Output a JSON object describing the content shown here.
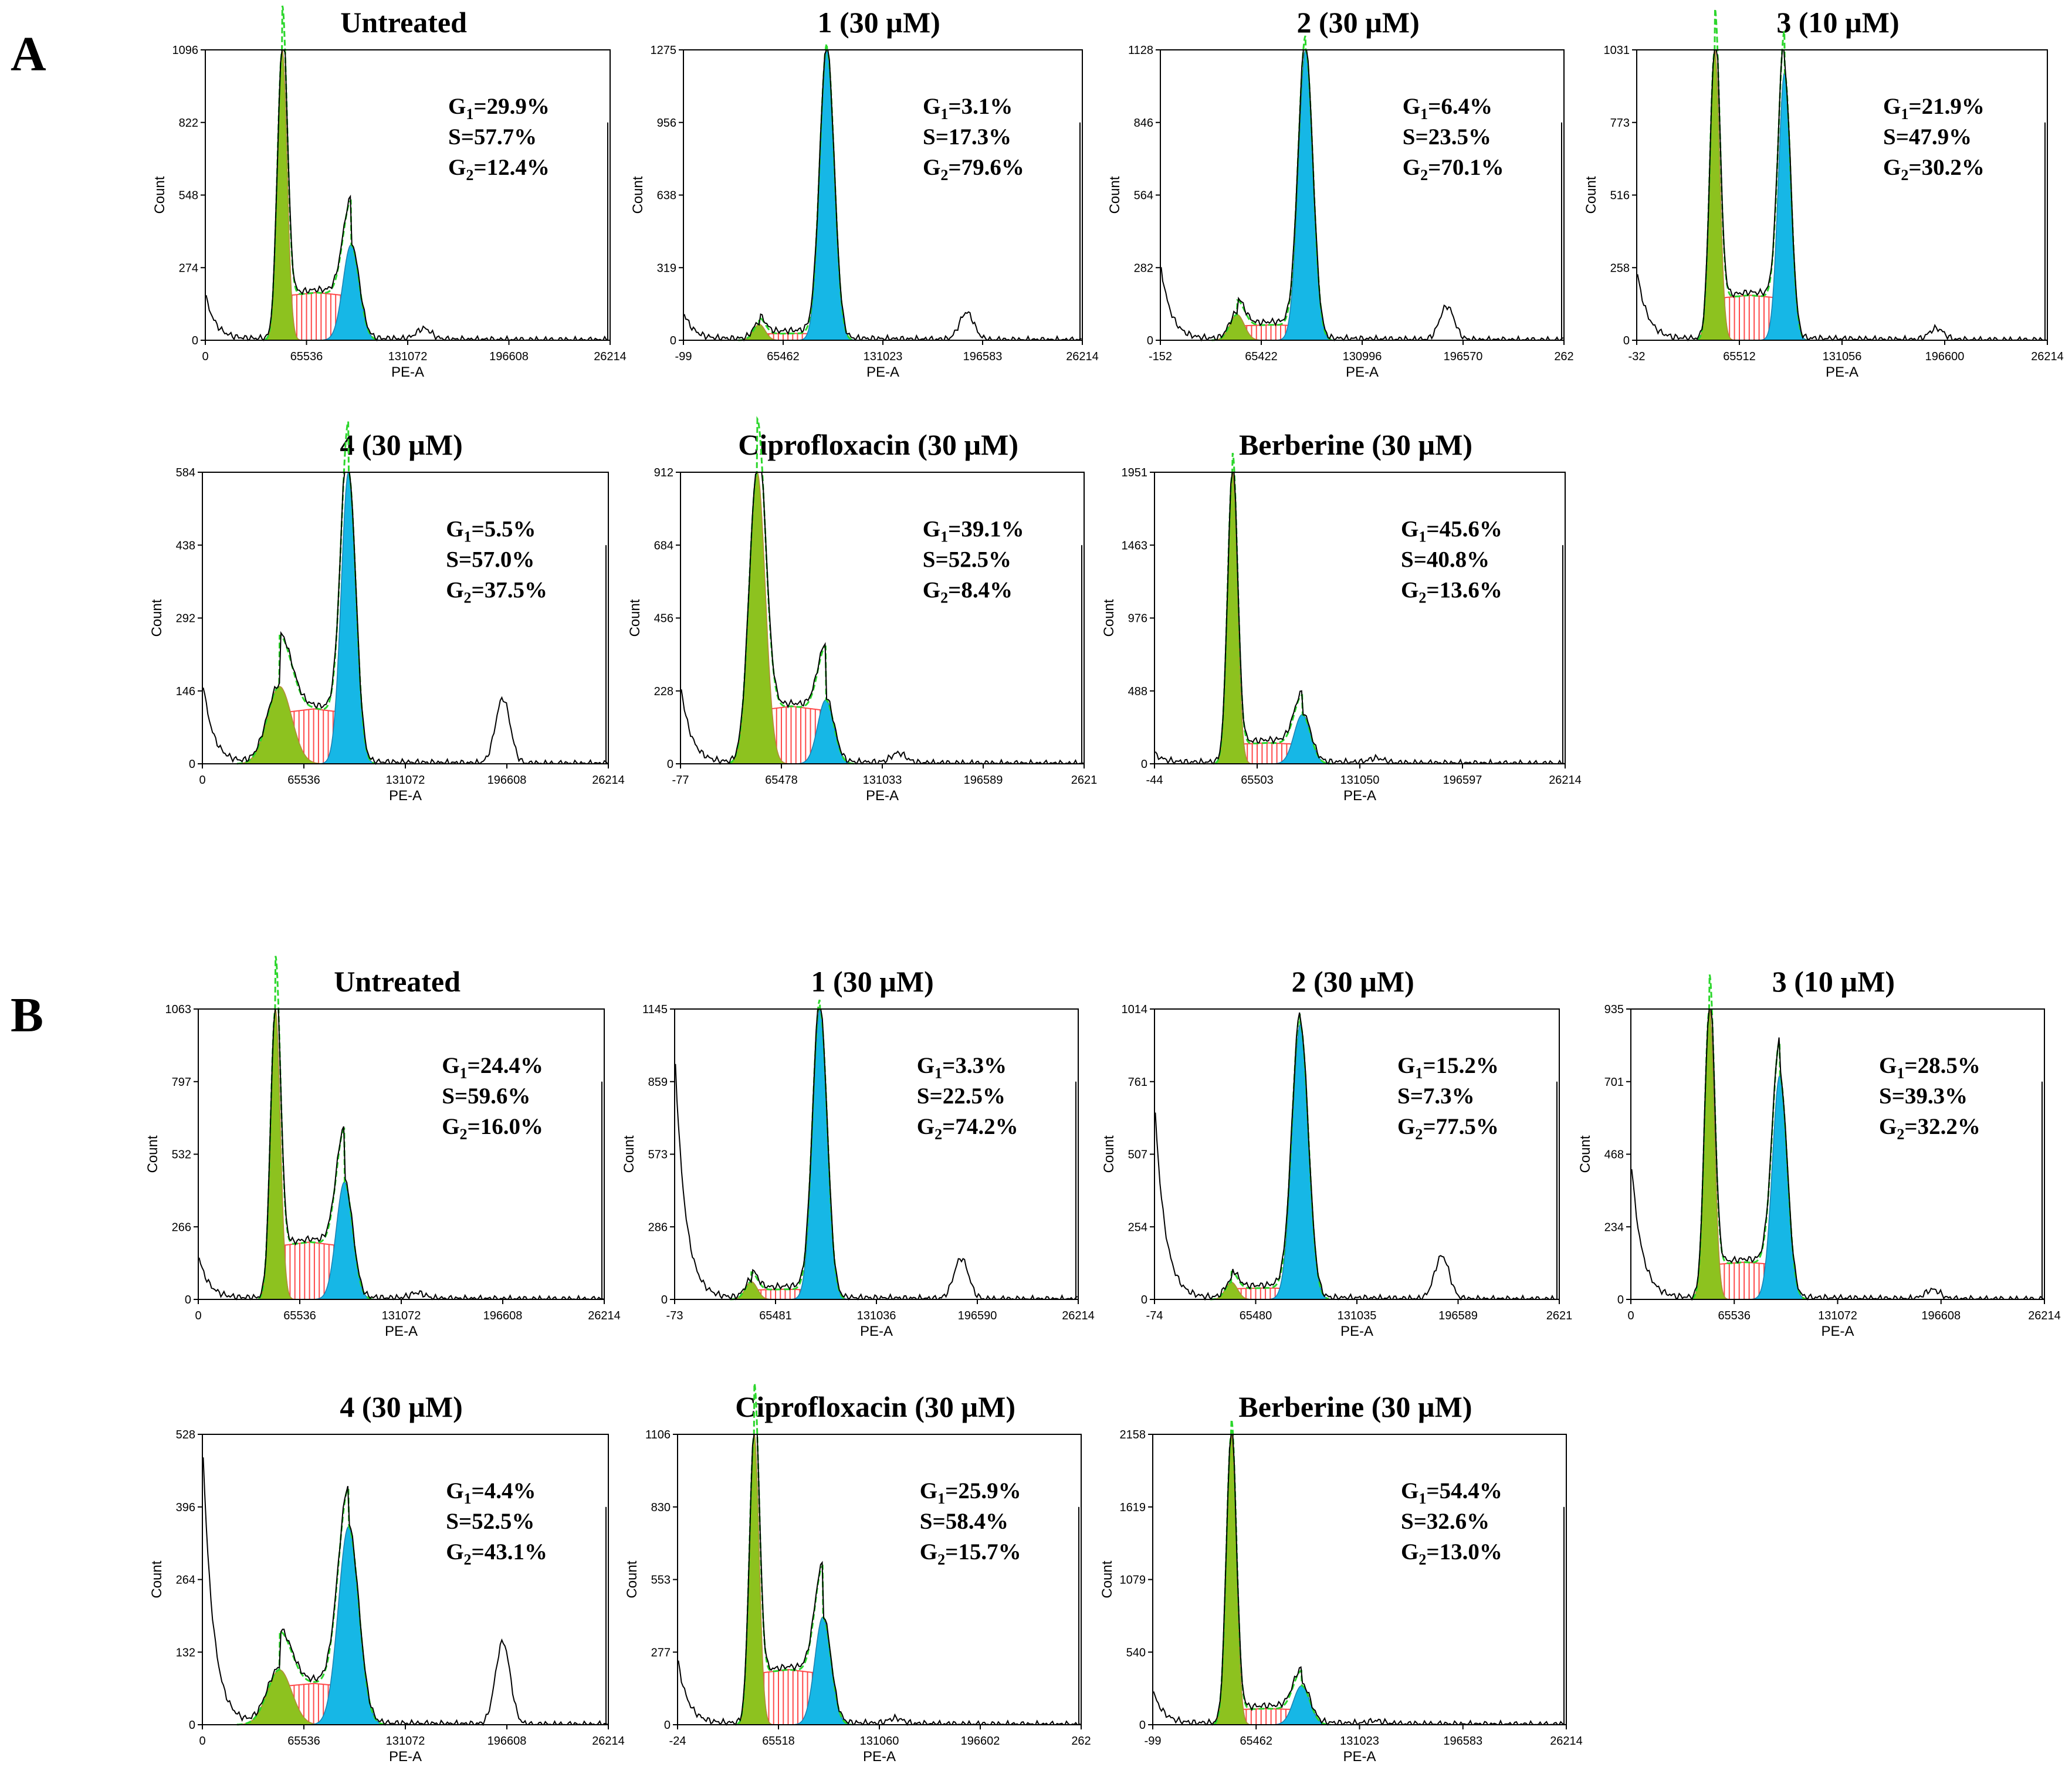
{
  "figure": {
    "panels": [
      "A",
      "B"
    ]
  },
  "colors": {
    "g1_fill": "#8DC21F",
    "g1_dark": "#B5873A",
    "s_fill": "#FF4A4A",
    "g2_fill": "#16B7E6",
    "fit_line": "#2BD62B",
    "trace": "#000000"
  },
  "chart_data": [
    {
      "panel": "A",
      "type": "area",
      "title": "Untreated",
      "xlabel": "PE-A",
      "ylabel": "Count",
      "yticks": [
        "0",
        "274",
        "548",
        "822",
        "1096"
      ],
      "ymax": 1096,
      "xticks": [
        "0",
        "65536",
        "131072",
        "196608",
        "26214"
      ],
      "stats": {
        "G1": "29.9%",
        "S": "57.7%",
        "G2": "12.4%"
      },
      "g1_peak": {
        "x": 0.19,
        "y": 1096,
        "w": 0.012
      },
      "g2_peak": {
        "x": 0.36,
        "y": 360,
        "w": 0.02
      },
      "s_level": 180,
      "debris": 170,
      "agg": {
        "x": 0.54,
        "y": 40
      }
    },
    {
      "panel": "A",
      "type": "area",
      "title": "1 (30 µM)",
      "xlabel": "PE-A",
      "ylabel": "Count",
      "yticks": [
        "0",
        "319",
        "638",
        "956",
        "1275"
      ],
      "ymax": 1275,
      "xticks": [
        "-99",
        "65462",
        "131023",
        "196583",
        "26214"
      ],
      "stats": {
        "G1": "3.1%",
        "S": "17.3%",
        "G2": "79.6%"
      },
      "g1_peak": {
        "x": 0.19,
        "y": 70,
        "w": 0.015
      },
      "g2_peak": {
        "x": 0.36,
        "y": 1275,
        "w": 0.018
      },
      "s_level": 30,
      "debris": 120,
      "agg": {
        "x": 0.71,
        "y": 120
      }
    },
    {
      "panel": "A",
      "type": "area",
      "title": "2 (30 µM)",
      "xlabel": "PE-A",
      "ylabel": "Count",
      "yticks": [
        "0",
        "282",
        "564",
        "846",
        "1128"
      ],
      "ymax": 1128,
      "xticks": [
        "-152",
        "65422",
        "130996",
        "196570",
        "262"
      ],
      "stats": {
        "G1": "6.4%",
        "S": "23.5%",
        "G2": "70.1%"
      },
      "g1_peak": {
        "x": 0.19,
        "y": 100,
        "w": 0.018
      },
      "g2_peak": {
        "x": 0.36,
        "y": 1128,
        "w": 0.018
      },
      "s_level": 60,
      "debris": 300,
      "agg": {
        "x": 0.71,
        "y": 130
      }
    },
    {
      "panel": "A",
      "type": "area",
      "title": "3 (10 µM)",
      "xlabel": "PE-A",
      "ylabel": "Count",
      "yticks": [
        "0",
        "258",
        "516",
        "773",
        "1031"
      ],
      "ymax": 1031,
      "xticks": [
        "-32",
        "65512",
        "131056",
        "196600",
        "26214"
      ],
      "stats": {
        "G1": "21.9%",
        "S": "47.9%",
        "G2": "30.2%"
      },
      "g1_peak": {
        "x": 0.19,
        "y": 1031,
        "w": 0.012
      },
      "g2_peak": {
        "x": 0.36,
        "y": 950,
        "w": 0.015
      },
      "s_level": 160,
      "debris": 250,
      "agg": {
        "x": 0.73,
        "y": 40
      }
    },
    {
      "panel": "A",
      "type": "area",
      "title": "4 (30 µM)",
      "xlabel": "PE-A",
      "ylabel": "Count",
      "yticks": [
        "0",
        "146",
        "292",
        "438",
        "584"
      ],
      "ymax": 584,
      "xticks": [
        "0",
        "65536",
        "131072",
        "196608",
        "26214"
      ],
      "stats": {
        "G1": "5.5%",
        "S": "57.0%",
        "G2": "37.5%"
      },
      "g1_peak": {
        "x": 0.19,
        "y": 155,
        "w": 0.03
      },
      "g2_peak": {
        "x": 0.36,
        "y": 584,
        "w": 0.018
      },
      "s_level": 110,
      "debris": 170,
      "agg": {
        "x": 0.74,
        "y": 130
      }
    },
    {
      "panel": "A",
      "type": "area",
      "title": "Ciprofloxacin (30 µM)",
      "xlabel": "PE-A",
      "ylabel": "Count",
      "yticks": [
        "0",
        "228",
        "456",
        "684",
        "912"
      ],
      "ymax": 912,
      "xticks": [
        "-77",
        "65478",
        "131033",
        "196589",
        "2621"
      ],
      "stats": {
        "G1": "39.1%",
        "S": "52.5%",
        "G2": "8.4%"
      },
      "g1_peak": {
        "x": 0.19,
        "y": 912,
        "w": 0.02
      },
      "g2_peak": {
        "x": 0.36,
        "y": 200,
        "w": 0.02
      },
      "s_level": 180,
      "debris": 250,
      "agg": {
        "x": 0.54,
        "y": 30
      }
    },
    {
      "panel": "A",
      "type": "area",
      "title": "Berberine (30 µM)",
      "xlabel": "PE-A",
      "ylabel": "Count",
      "yticks": [
        "0",
        "488",
        "976",
        "1463",
        "1951"
      ],
      "ymax": 1951,
      "xticks": [
        "-44",
        "65503",
        "131050",
        "196597",
        "26214"
      ],
      "stats": {
        "G1": "45.6%",
        "S": "40.8%",
        "G2": "13.6%"
      },
      "g1_peak": {
        "x": 0.19,
        "y": 1951,
        "w": 0.012
      },
      "g2_peak": {
        "x": 0.36,
        "y": 330,
        "w": 0.02
      },
      "s_level": 140,
      "debris": 60,
      "agg": {
        "x": 0.54,
        "y": 30
      }
    },
    {
      "panel": "B",
      "type": "area",
      "title": "Untreated",
      "xlabel": "PE-A",
      "ylabel": "Count",
      "yticks": [
        "0",
        "266",
        "532",
        "797",
        "1063"
      ],
      "ymax": 1063,
      "xticks": [
        "0",
        "65536",
        "131072",
        "196608",
        "26214"
      ],
      "stats": {
        "G1": "24.4%",
        "S": "59.6%",
        "G2": "16.0%"
      },
      "g1_peak": {
        "x": 0.19,
        "y": 1063,
        "w": 0.012
      },
      "g2_peak": {
        "x": 0.36,
        "y": 430,
        "w": 0.02
      },
      "s_level": 210,
      "debris": 160,
      "agg": {
        "x": 0.54,
        "y": 20
      }
    },
    {
      "panel": "B",
      "type": "area",
      "title": "1 (30 µM)",
      "xlabel": "PE-A",
      "ylabel": "Count",
      "yticks": [
        "0",
        "286",
        "573",
        "859",
        "1145"
      ],
      "ymax": 1145,
      "xticks": [
        "-73",
        "65481",
        "131036",
        "196590",
        "26214"
      ],
      "stats": {
        "G1": "3.3%",
        "S": "22.5%",
        "G2": "74.2%"
      },
      "g1_peak": {
        "x": 0.19,
        "y": 70,
        "w": 0.015
      },
      "g2_peak": {
        "x": 0.36,
        "y": 1145,
        "w": 0.018
      },
      "s_level": 40,
      "debris": 1000,
      "agg": {
        "x": 0.71,
        "y": 160
      }
    },
    {
      "panel": "B",
      "type": "area",
      "title": "2 (30 µM)",
      "xlabel": "PE-A",
      "ylabel": "Count",
      "yticks": [
        "0",
        "254",
        "507",
        "761",
        "1014"
      ],
      "ymax": 1014,
      "xticks": [
        "-74",
        "65480",
        "131035",
        "196589",
        "2621"
      ],
      "stats": {
        "G1": "15.2%",
        "S": "7.3%",
        "G2": "77.5%"
      },
      "g1_peak": {
        "x": 0.19,
        "y": 60,
        "w": 0.015
      },
      "g2_peak": {
        "x": 0.36,
        "y": 960,
        "w": 0.02
      },
      "s_level": 40,
      "debris": 700,
      "agg": {
        "x": 0.71,
        "y": 150
      }
    },
    {
      "panel": "B",
      "type": "area",
      "title": "3 (10 µM)",
      "xlabel": "PE-A",
      "ylabel": "Count",
      "yticks": [
        "0",
        "234",
        "468",
        "701",
        "935"
      ],
      "ymax": 935,
      "xticks": [
        "0",
        "65536",
        "131072",
        "196608",
        "26214"
      ],
      "stats": {
        "G1": "28.5%",
        "S": "39.3%",
        "G2": "32.2%"
      },
      "g1_peak": {
        "x": 0.19,
        "y": 935,
        "w": 0.012
      },
      "g2_peak": {
        "x": 0.36,
        "y": 720,
        "w": 0.018
      },
      "s_level": 120,
      "debris": 460,
      "agg": {
        "x": 0.73,
        "y": 30
      }
    },
    {
      "panel": "B",
      "type": "area",
      "title": "4 (30 µM)",
      "xlabel": "PE-A",
      "ylabel": "Count",
      "yticks": [
        "0",
        "132",
        "264",
        "396",
        "528"
      ],
      "ymax": 528,
      "xticks": [
        "0",
        "65536",
        "131072",
        "196608",
        "26214"
      ],
      "stats": {
        "G1": "4.4%",
        "S": "52.5%",
        "G2": "43.1%"
      },
      "g1_peak": {
        "x": 0.19,
        "y": 100,
        "w": 0.03
      },
      "g2_peak": {
        "x": 0.36,
        "y": 360,
        "w": 0.025
      },
      "s_level": 75,
      "debris": 528,
      "agg": {
        "x": 0.74,
        "y": 150
      }
    },
    {
      "panel": "B",
      "type": "area",
      "title": "Ciprofloxacin (30 µM)",
      "xlabel": "PE-A",
      "ylabel": "Count",
      "yticks": [
        "0",
        "277",
        "553",
        "830",
        "1106"
      ],
      "ymax": 1106,
      "xticks": [
        "-24",
        "65518",
        "131060",
        "196602",
        "262"
      ],
      "stats": {
        "G1": "25.9%",
        "S": "58.4%",
        "G2": "15.7%"
      },
      "g1_peak": {
        "x": 0.19,
        "y": 1106,
        "w": 0.012
      },
      "g2_peak": {
        "x": 0.36,
        "y": 410,
        "w": 0.02
      },
      "s_level": 210,
      "debris": 250,
      "agg": {
        "x": 0.54,
        "y": 20
      }
    },
    {
      "panel": "B",
      "type": "area",
      "title": "Berberine (30 µM)",
      "xlabel": "PE-A",
      "ylabel": "Count",
      "yticks": [
        "0",
        "540",
        "1079",
        "1619",
        "2158"
      ],
      "ymax": 2158,
      "xticks": [
        "-99",
        "65462",
        "131023",
        "196583",
        "26214"
      ],
      "stats": {
        "G1": "54.4%",
        "S": "32.6%",
        "G2": "13.0%"
      },
      "g1_peak": {
        "x": 0.19,
        "y": 2158,
        "w": 0.012
      },
      "g2_peak": {
        "x": 0.36,
        "y": 290,
        "w": 0.02
      },
      "s_level": 120,
      "debris": 250,
      "agg": {
        "x": 0.54,
        "y": 20
      }
    }
  ]
}
